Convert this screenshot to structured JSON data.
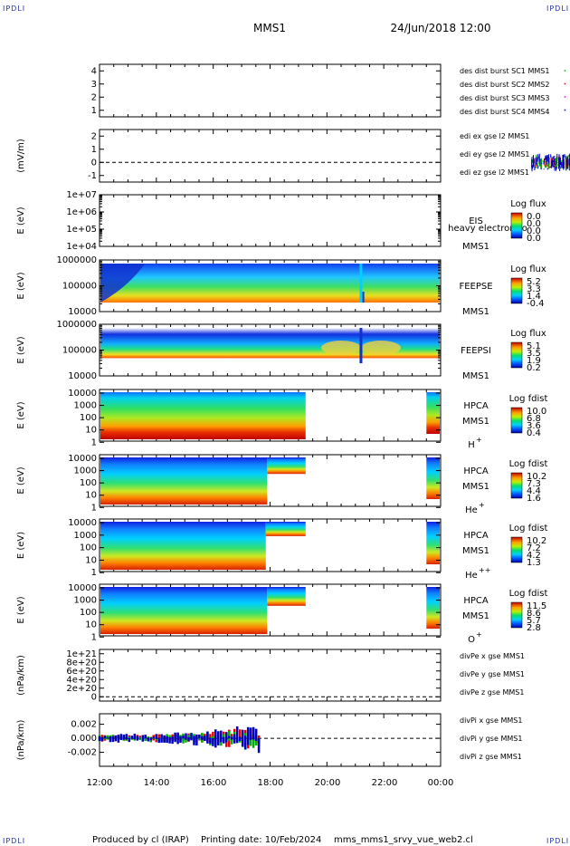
{
  "header": {
    "title": "MMS1",
    "datetime": "24/Jun/2018 12:00"
  },
  "corner_label": "IPDLI",
  "footer": {
    "produced": "Produced by cl (IRAP)",
    "printing": "Printing date: 10/Feb/2024",
    "script": "mms_mms1_srvy_vue_web2.cl"
  },
  "colors": {
    "red": "#e00000",
    "green": "#00b000",
    "blue": "#0000c0",
    "magenta": "#e000e0",
    "black": "#000000"
  },
  "chart_data": [
    {
      "type": "scatter",
      "id": "burst",
      "ylim": [
        0.5,
        4.5
      ],
      "yticks": [
        "1",
        "2",
        "3",
        "4"
      ],
      "legend": [
        {
          "label": "des dist burst SC1 MMS1",
          "color": "#0000c0"
        },
        {
          "label": "des dist burst SC2 MMS2",
          "color": "#e000e0"
        },
        {
          "label": "des dist burst SC3 MMS3",
          "color": "#e00000"
        },
        {
          "label": "des dist burst SC4 MMS4",
          "color": "#00b000"
        }
      ]
    },
    {
      "type": "line",
      "id": "efield",
      "ylabel": "(mV/m)",
      "ylim": [
        -1.5,
        2.5
      ],
      "yticks": [
        "2",
        "1",
        "0",
        "-1"
      ],
      "legend": [
        {
          "label": "edi ex gse l2 MMS1",
          "color": "#e00000"
        },
        {
          "label": "edi ey gse l2 MMS1",
          "color": "#00b000"
        },
        {
          "label": "edi ez gse l2 MMS1",
          "color": "#0000c0"
        }
      ]
    },
    {
      "type": "heatmap",
      "id": "eis",
      "ylabel": "E (eV)",
      "yticks": [
        "1e+07",
        "1e+06",
        "1e+05",
        "1e+04"
      ],
      "instrument": "EIS",
      "spacecraft": "MMS1",
      "extra_label": "heavy electron to",
      "colorbar": {
        "title": "Log flux",
        "ticks": [
          "0.0",
          "0.0",
          "0.0",
          "0.0"
        ]
      }
    },
    {
      "type": "heatmap",
      "id": "feepse",
      "ylabel": "E (eV)",
      "yticks": [
        "1000000",
        "100000",
        "10000"
      ],
      "instrument": "FEEPSE",
      "spacecraft": "MMS1",
      "colorbar": {
        "title": "Log flux",
        "ticks": [
          "5.2",
          "3.3",
          "1.4",
          "-0.4"
        ]
      }
    },
    {
      "type": "heatmap",
      "id": "feepsi",
      "ylabel": "E (eV)",
      "yticks": [
        "1000000",
        "100000",
        "10000"
      ],
      "instrument": "FEEPSI",
      "spacecraft": "MMS1",
      "colorbar": {
        "title": "Log flux",
        "ticks": [
          "5.1",
          "3.5",
          "1.9",
          "0.2"
        ]
      }
    },
    {
      "type": "heatmap",
      "id": "hpca_h",
      "ylabel": "E (eV)",
      "yticks": [
        "10000",
        "1000",
        "100",
        "10",
        "1"
      ],
      "instrument": "HPCA",
      "spacecraft": "MMS1",
      "species": "H",
      "charge": "+",
      "colorbar": {
        "title": "Log fdist",
        "ticks": [
          "10.0",
          "6.8",
          "3.6",
          "0.4"
        ]
      }
    },
    {
      "type": "heatmap",
      "id": "hpca_he1",
      "ylabel": "E (eV)",
      "yticks": [
        "10000",
        "1000",
        "100",
        "10",
        "1"
      ],
      "instrument": "HPCA",
      "spacecraft": "MMS1",
      "species": "He",
      "charge": "+",
      "colorbar": {
        "title": "Log fdist",
        "ticks": [
          "10.2",
          "7.3",
          "4.4",
          "1.6"
        ]
      }
    },
    {
      "type": "heatmap",
      "id": "hpca_he2",
      "ylabel": "E (eV)",
      "yticks": [
        "10000",
        "1000",
        "100",
        "10",
        "1"
      ],
      "instrument": "HPCA",
      "spacecraft": "MMS1",
      "species": "He",
      "charge": "++",
      "colorbar": {
        "title": "Log fdist",
        "ticks": [
          "10.2",
          "7.2",
          "4.2",
          "1.3"
        ]
      }
    },
    {
      "type": "heatmap",
      "id": "hpca_o",
      "ylabel": "E (eV)",
      "yticks": [
        "10000",
        "1000",
        "100",
        "10",
        "1"
      ],
      "instrument": "HPCA",
      "spacecraft": "MMS1",
      "species": "O",
      "charge": "+",
      "colorbar": {
        "title": "Log fdist",
        "ticks": [
          "11.5",
          "8.6",
          "5.7",
          "2.8"
        ]
      }
    },
    {
      "type": "line",
      "id": "divpe",
      "ylabel": "(nPa/km)",
      "ylim": [
        -1e+20,
        1.1e+21
      ],
      "yticks": [
        "1e+21",
        "8e+20",
        "6e+20",
        "4e+20",
        "2e+20",
        "0"
      ],
      "legend": [
        {
          "label": "divPe x gse MMS1",
          "color": "#e00000"
        },
        {
          "label": "divPe y gse MMS1",
          "color": "#00b000"
        },
        {
          "label": "divPe z gse MMS1",
          "color": "#0000c0"
        }
      ]
    },
    {
      "type": "line",
      "id": "divpi",
      "ylabel": "(nPa/km)",
      "ylim": [
        -0.004,
        0.0035
      ],
      "yticks": [
        "0.002",
        "0.000",
        "-0.002"
      ],
      "legend": [
        {
          "label": "divPi x gse MMS1",
          "color": "#e00000"
        },
        {
          "label": "divPi y gse MMS1",
          "color": "#00b000"
        },
        {
          "label": "divPi z gse MMS1",
          "color": "#0000c0"
        }
      ]
    }
  ],
  "xaxis": {
    "ticks": [
      "12:00",
      "14:00",
      "16:00",
      "18:00",
      "20:00",
      "22:00",
      "00:00"
    ]
  }
}
